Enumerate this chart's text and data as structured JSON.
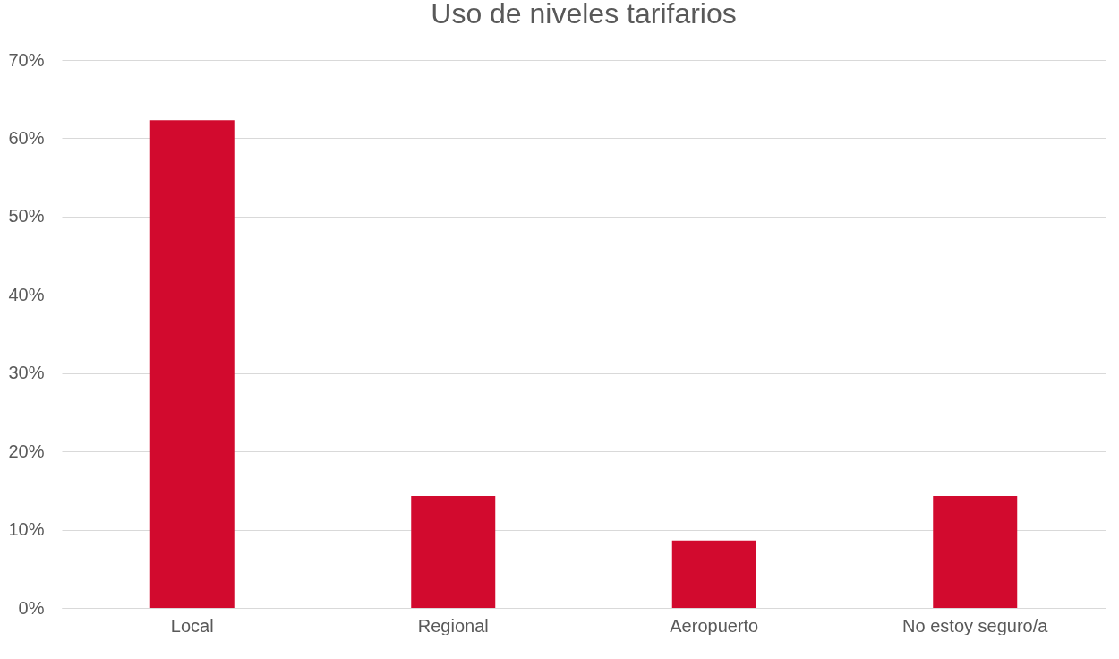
{
  "chart_data": {
    "type": "bar",
    "title": "Uso de niveles tarifarios",
    "categories": [
      "Local",
      "Regional",
      "Aeropuerto",
      "No estoy seguro/a"
    ],
    "values": [
      62.3,
      14.3,
      8.6,
      14.3
    ],
    "color": "#d20a2e",
    "ylim": [
      0,
      70
    ],
    "yticks": [
      {
        "value": 0,
        "label": "0%"
      },
      {
        "value": 10,
        "label": "10%"
      },
      {
        "value": 20,
        "label": "20%"
      },
      {
        "value": 30,
        "label": "30%"
      },
      {
        "value": 40,
        "label": "40%"
      },
      {
        "value": 50,
        "label": "50%"
      },
      {
        "value": 60,
        "label": "60%"
      },
      {
        "value": 70,
        "label": "70%"
      }
    ],
    "grid": "y"
  }
}
